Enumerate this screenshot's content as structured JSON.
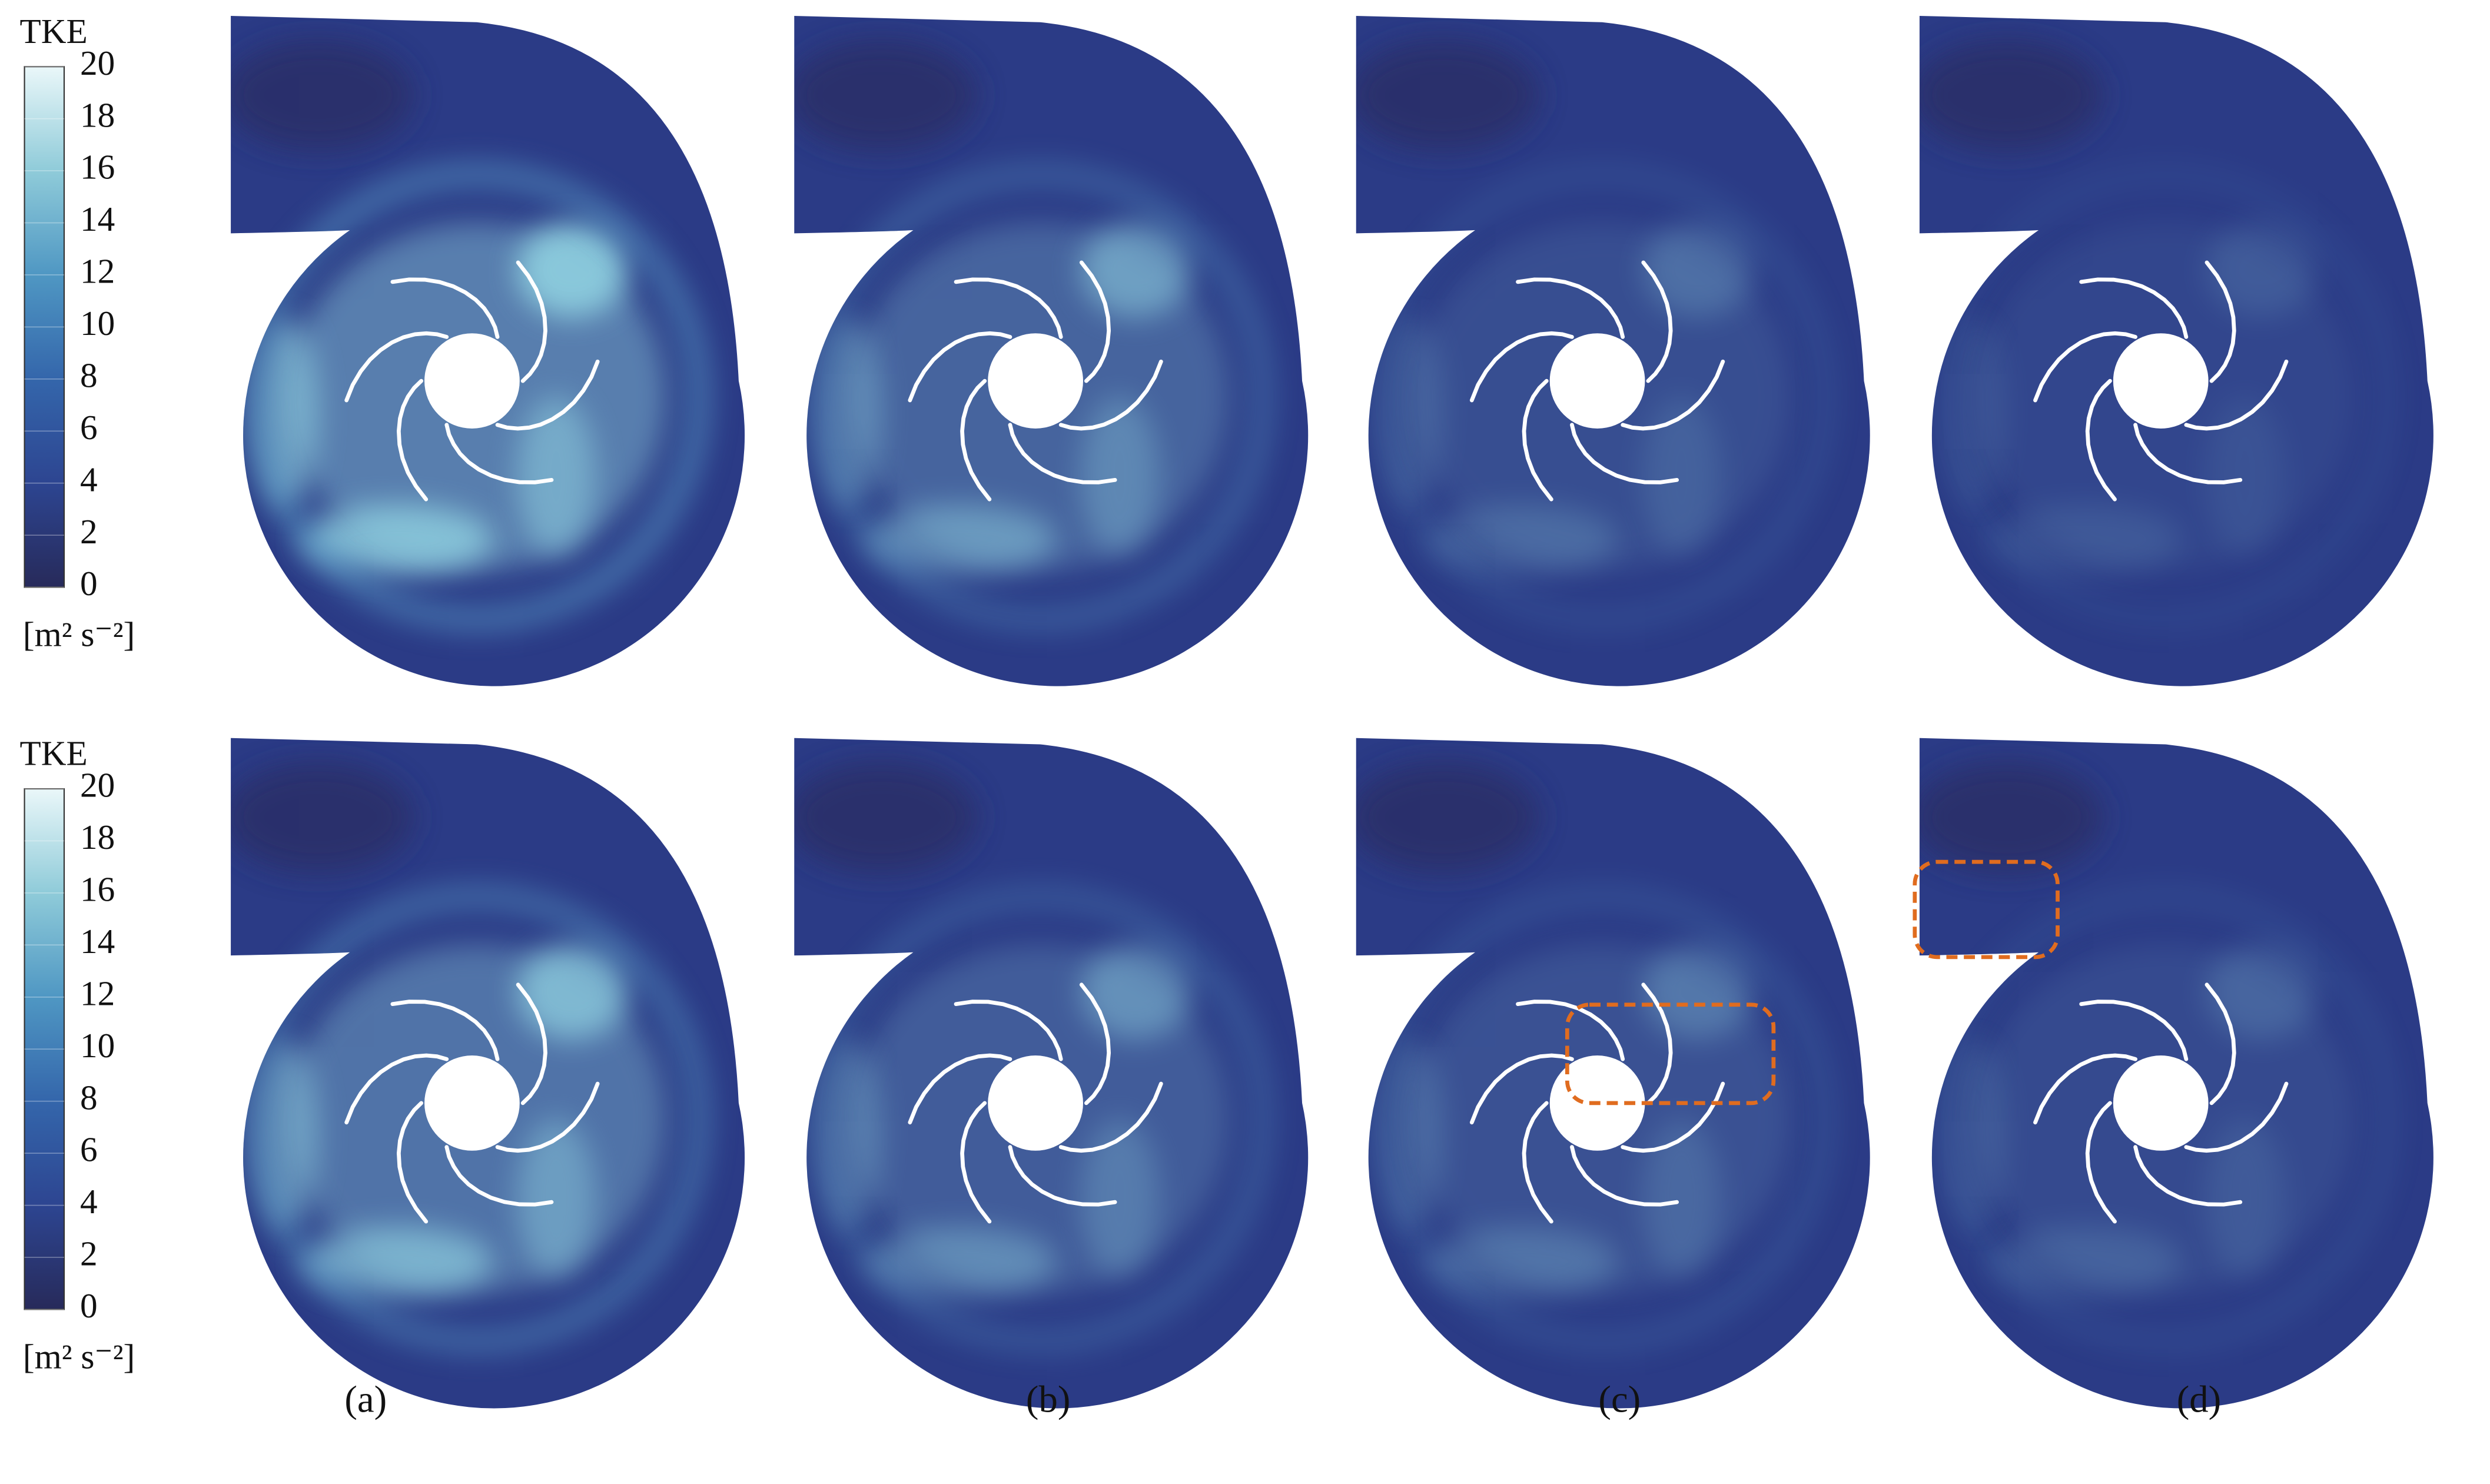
{
  "colorbars": [
    {
      "title": "TKE",
      "range": [
        0,
        20
      ],
      "ticks": [
        0,
        2,
        4,
        6,
        8,
        10,
        12,
        14,
        16,
        18,
        20
      ],
      "unit": "[m² s⁻²]"
    },
    {
      "title": "TKE",
      "range": [
        0,
        20
      ],
      "ticks": [
        0,
        2,
        4,
        6,
        8,
        10,
        12,
        14,
        16,
        18,
        20
      ],
      "unit": "[m² s⁻²]"
    }
  ],
  "panel_labels": [
    "(a)",
    "(b)",
    "(c)",
    "(d)"
  ]
}
